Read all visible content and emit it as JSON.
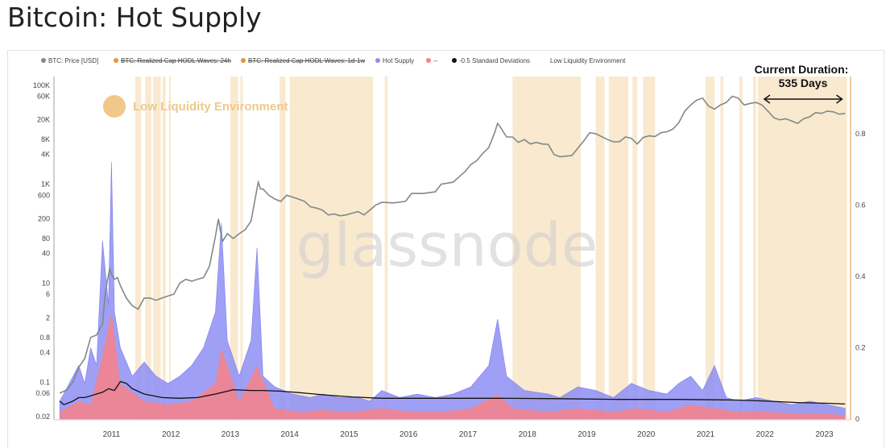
{
  "page": {
    "title": "Bitcoin: Hot Supply"
  },
  "legend": [
    {
      "label": "BTC: Price [USD]",
      "color": "#888888",
      "strike": false
    },
    {
      "label": "BTC: Realized Cap HODL Waves: 24h",
      "color": "#e8923a",
      "strike": true
    },
    {
      "label": "BTC: Realized Cap HODL Waves: 1d-1w",
      "color": "#e8923a",
      "strike": true
    },
    {
      "label": "Hot Supply",
      "color": "#8e8ef5",
      "strike": false
    },
    {
      "label": "--",
      "color": "#f2838e",
      "strike": false
    },
    {
      "label": "-0.5 Standard Deviations",
      "color": "#111111",
      "strike": false
    },
    {
      "label": "Low Liquidity Environment",
      "color": "#f5d7a8",
      "strike": false
    }
  ],
  "annotations": {
    "in_chart_label": "Low Liquidity Environment",
    "duration_line1": "Current Duration:",
    "duration_line2": "535 Days",
    "watermark": "glassnode"
  },
  "chart_data": {
    "type": "line",
    "left_axis": {
      "scale": "log",
      "ticks": [
        "100K",
        "60K",
        "20K",
        "8K",
        "4K",
        "1K",
        "600",
        "200",
        "80",
        "40",
        "10",
        "6",
        "2",
        "0.8",
        "0.4",
        "0.1",
        "0.06",
        "0.02"
      ],
      "tick_values": [
        100000,
        60000,
        20000,
        8000,
        4000,
        1000,
        600,
        200,
        80,
        40,
        10,
        6,
        2,
        0.8,
        0.4,
        0.1,
        0.06,
        0.02
      ],
      "range": [
        0.018,
        150000
      ]
    },
    "right_axis": {
      "ticks": [
        "0.8",
        "0.6",
        "0.4",
        "0.2",
        "0"
      ],
      "tick_values": [
        0.8,
        0.6,
        0.4,
        0.2,
        0
      ],
      "range": [
        0,
        0.96
      ]
    },
    "x_axis": {
      "ticks": [
        "2011",
        "2012",
        "2013",
        "2014",
        "2015",
        "2016",
        "2017",
        "2018",
        "2019",
        "2020",
        "2021",
        "2022",
        "2023"
      ],
      "tick_values": [
        2011,
        2012,
        2013,
        2014,
        2015,
        2016,
        2017,
        2018,
        2019,
        2020,
        2021,
        2022,
        2023
      ],
      "range": [
        2010.55,
        2023.85
      ]
    },
    "series": [
      {
        "name": "BTC: Price [USD]",
        "axis": "left",
        "x": [
          2010.58,
          2010.7,
          2010.8,
          2010.9,
          2011.0,
          2011.1,
          2011.2,
          2011.3,
          2011.35,
          2011.42,
          2011.45,
          2011.5,
          2011.55,
          2011.6,
          2011.7,
          2011.8,
          2011.9,
          2012.0,
          2012.1,
          2012.2,
          2012.3,
          2012.4,
          2012.5,
          2012.6,
          2012.7,
          2012.8,
          2012.9,
          2013.0,
          2013.1,
          2013.2,
          2013.25,
          2013.28,
          2013.32,
          2013.4,
          2013.5,
          2013.6,
          2013.7,
          2013.8,
          2013.88,
          2013.92,
          2013.96,
          2014.0,
          2014.1,
          2014.2,
          2014.3,
          2014.4,
          2014.5,
          2014.6,
          2014.7,
          2014.8,
          2014.9,
          2015.0,
          2015.1,
          2015.2,
          2015.3,
          2015.4,
          2015.5,
          2015.6,
          2015.7,
          2015.8,
          2015.9,
          2016.0,
          2016.2,
          2016.4,
          2016.5,
          2016.7,
          2016.9,
          2017.0,
          2017.2,
          2017.4,
          2017.5,
          2017.6,
          2017.7,
          2017.8,
          2017.9,
          2017.95,
          2018.0,
          2018.1,
          2018.2,
          2018.3,
          2018.4,
          2018.5,
          2018.6,
          2018.7,
          2018.8,
          2018.9,
          2019.0,
          2019.2,
          2019.4,
          2019.5,
          2019.6,
          2019.8,
          2019.9,
          2020.0,
          2020.1,
          2020.2,
          2020.3,
          2020.4,
          2020.5,
          2020.6,
          2020.7,
          2020.8,
          2020.9,
          2021.0,
          2021.1,
          2021.2,
          2021.3,
          2021.4,
          2021.5,
          2021.6,
          2021.7,
          2021.8,
          2021.9,
          2022.0,
          2022.1,
          2022.2,
          2022.3,
          2022.4,
          2022.5,
          2022.6,
          2022.7,
          2022.8,
          2022.9,
          2023.0,
          2023.1,
          2023.2,
          2023.3,
          2023.4,
          2023.5,
          2023.6,
          2023.7,
          2023.8
        ],
        "y": [
          0.06,
          0.07,
          0.1,
          0.2,
          0.3,
          0.8,
          0.9,
          1.5,
          7,
          20,
          15,
          12,
          13,
          9,
          5,
          3.5,
          3,
          5,
          5,
          4.5,
          5,
          5.5,
          6,
          10,
          12,
          11,
          12,
          13,
          22,
          90,
          200,
          120,
          70,
          100,
          80,
          100,
          120,
          180,
          600,
          1100,
          800,
          800,
          600,
          500,
          450,
          600,
          550,
          500,
          450,
          350,
          330,
          300,
          240,
          250,
          230,
          240,
          260,
          280,
          240,
          300,
          380,
          430,
          420,
          450,
          650,
          650,
          700,
          1000,
          1100,
          1800,
          2500,
          3000,
          4200,
          5500,
          11000,
          17000,
          14000,
          9000,
          9000,
          7000,
          8000,
          6500,
          7000,
          6500,
          6400,
          4000,
          3600,
          3800,
          7500,
          11000,
          10500,
          8000,
          7200,
          7200,
          9000,
          8500,
          6500,
          8800,
          9500,
          9200,
          11000,
          11500,
          13000,
          17500,
          30000,
          40000,
          50000,
          55000,
          38000,
          33000,
          40000,
          45000,
          60000,
          55000,
          40000,
          43000,
          45000,
          40000,
          30000,
          22000,
          20000,
          21000,
          19000,
          17000,
          21000,
          23000,
          28000,
          27000,
          30000,
          29000,
          26000,
          27000
        ]
      },
      {
        "name": "Hot Supply",
        "axis": "right",
        "x": [
          2010.58,
          2010.9,
          2011.0,
          2011.1,
          2011.2,
          2011.3,
          2011.4,
          2011.45,
          2011.5,
          2011.6,
          2011.8,
          2012.0,
          2012.2,
          2012.4,
          2012.6,
          2012.8,
          2013.0,
          2013.2,
          2013.3,
          2013.4,
          2013.6,
          2013.8,
          2013.9,
          2014.0,
          2014.2,
          2014.5,
          2014.8,
          2015.0,
          2015.3,
          2015.6,
          2015.8,
          2016.0,
          2016.3,
          2016.6,
          2016.9,
          2017.2,
          2017.5,
          2017.8,
          2017.95,
          2018.1,
          2018.4,
          2018.8,
          2019.0,
          2019.3,
          2019.6,
          2019.9,
          2020.2,
          2020.5,
          2020.8,
          2021.0,
          2021.2,
          2021.4,
          2021.6,
          2021.8,
          2022.0,
          2022.3,
          2022.6,
          2022.9,
          2023.2,
          2023.5,
          2023.8
        ],
        "y": [
          0.05,
          0.15,
          0.1,
          0.2,
          0.15,
          0.5,
          0.32,
          0.72,
          0.3,
          0.2,
          0.12,
          0.16,
          0.12,
          0.1,
          0.12,
          0.15,
          0.2,
          0.3,
          0.55,
          0.22,
          0.12,
          0.22,
          0.48,
          0.12,
          0.09,
          0.07,
          0.06,
          0.07,
          0.06,
          0.06,
          0.05,
          0.08,
          0.06,
          0.07,
          0.06,
          0.07,
          0.09,
          0.15,
          0.28,
          0.12,
          0.08,
          0.07,
          0.06,
          0.09,
          0.08,
          0.06,
          0.1,
          0.08,
          0.07,
          0.1,
          0.12,
          0.08,
          0.15,
          0.06,
          0.05,
          0.06,
          0.05,
          0.04,
          0.05,
          0.04,
          0.03
        ]
      },
      {
        "name": "--",
        "axis": "right",
        "x": [
          2010.58,
          2010.9,
          2011.1,
          2011.3,
          2011.45,
          2011.6,
          2012.0,
          2012.4,
          2012.8,
          2013.2,
          2013.3,
          2013.6,
          2013.9,
          2014.2,
          2014.6,
          2015.0,
          2015.5,
          2016.0,
          2016.5,
          2017.0,
          2017.5,
          2017.95,
          2018.2,
          2018.8,
          2019.3,
          2019.9,
          2020.3,
          2020.8,
          2021.2,
          2021.6,
          2022.0,
          2022.5,
          2023.0,
          2023.5,
          2023.8
        ],
        "y": [
          0.02,
          0.05,
          0.04,
          0.18,
          0.3,
          0.1,
          0.05,
          0.04,
          0.05,
          0.1,
          0.2,
          0.05,
          0.15,
          0.03,
          0.02,
          0.025,
          0.02,
          0.03,
          0.02,
          0.02,
          0.03,
          0.07,
          0.03,
          0.02,
          0.03,
          0.02,
          0.03,
          0.02,
          0.04,
          0.03,
          0.02,
          0.02,
          0.015,
          0.015,
          0.01
        ]
      },
      {
        "name": "-0.5 Standard Deviations",
        "axis": "right",
        "x": [
          2010.58,
          2010.65,
          2010.8,
          2010.9,
          2011.0,
          2011.1,
          2011.2,
          2011.3,
          2011.4,
          2011.5,
          2011.6,
          2011.7,
          2011.8,
          2012.0,
          2012.3,
          2012.6,
          2012.9,
          2013.2,
          2013.5,
          2013.8,
          2014.0,
          2014.3,
          2014.6,
          2015.0,
          2015.5,
          2016.0,
          2017.0,
          2018.0,
          2019.0,
          2020.0,
          2021.0,
          2022.0,
          2022.5,
          2023.0,
          2023.5,
          2023.8
        ],
        "y": [
          0.05,
          0.04,
          0.05,
          0.06,
          0.06,
          0.065,
          0.07,
          0.075,
          0.085,
          0.08,
          0.105,
          0.1,
          0.085,
          0.07,
          0.06,
          0.058,
          0.06,
          0.07,
          0.082,
          0.08,
          0.08,
          0.078,
          0.074,
          0.068,
          0.062,
          0.058,
          0.058,
          0.058,
          0.057,
          0.055,
          0.055,
          0.053,
          0.05,
          0.046,
          0.044,
          0.042
        ]
      }
    ],
    "low_liquidity_periods": [
      [
        2011.85,
        2011.95
      ],
      [
        2012.02,
        2012.12
      ],
      [
        2012.15,
        2012.28
      ],
      [
        2012.31,
        2012.36
      ],
      [
        2012.42,
        2012.45
      ],
      [
        2013.45,
        2013.58
      ],
      [
        2013.62,
        2013.66
      ],
      [
        2014.28,
        2014.38
      ],
      [
        2014.45,
        2015.85
      ],
      [
        2016.05,
        2016.1
      ],
      [
        2018.2,
        2019.35
      ],
      [
        2019.6,
        2019.75
      ],
      [
        2019.82,
        2020.15
      ],
      [
        2020.22,
        2020.3
      ],
      [
        2020.4,
        2020.6
      ],
      [
        2021.45,
        2021.6
      ],
      [
        2021.7,
        2021.75
      ],
      [
        2022.02,
        2022.07
      ],
      [
        2022.25,
        2022.3
      ],
      [
        2022.33,
        2023.83
      ]
    ],
    "current_duration_range": [
      2022.33,
      2023.83
    ]
  }
}
